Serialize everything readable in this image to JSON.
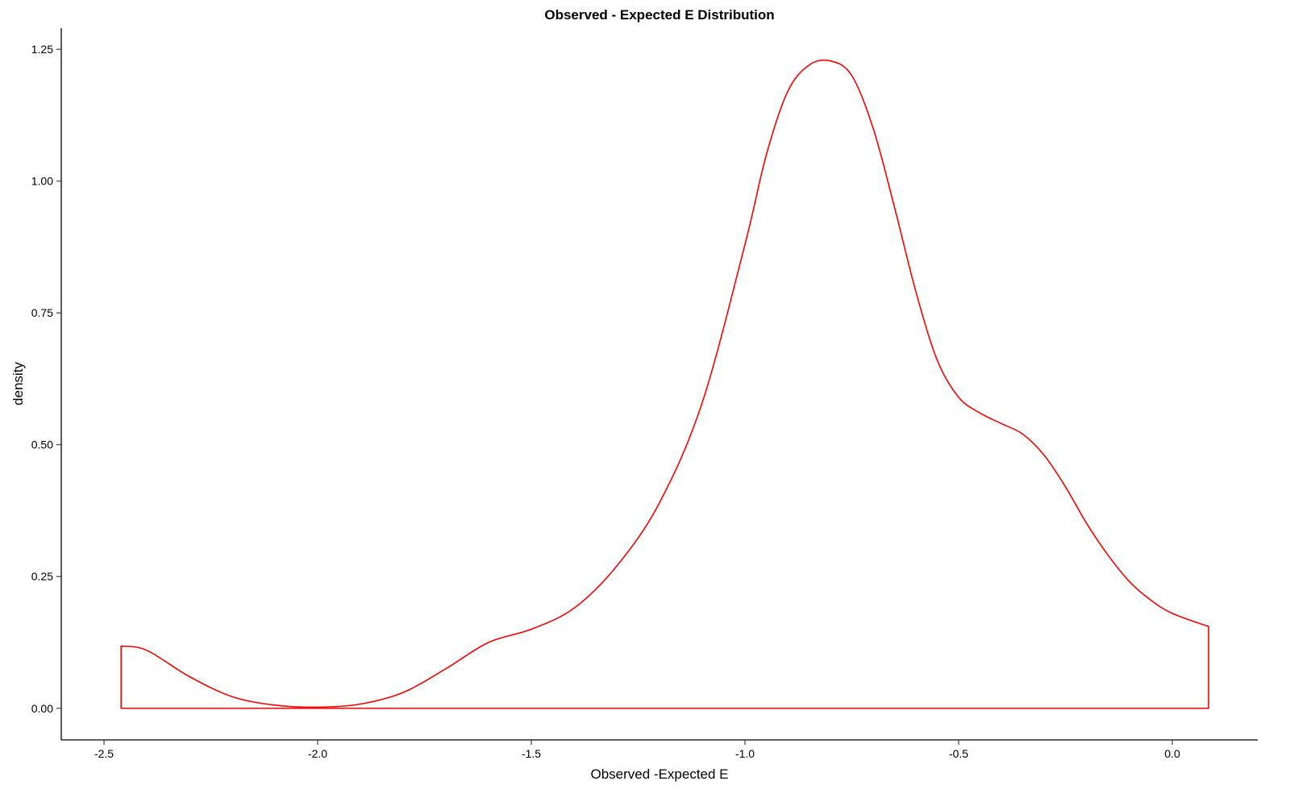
{
  "chart_data": {
    "type": "area",
    "title": "Observed - Expected E Distribution",
    "xlabel": "Observed -Expected E",
    "ylabel": "density",
    "xlim": [
      -2.6,
      0.2
    ],
    "ylim": [
      -0.06,
      1.29
    ],
    "x_ticks": [
      -2.5,
      -2.0,
      -1.5,
      -1.0,
      -0.5,
      0.0
    ],
    "x_tick_labels": [
      "-2.5",
      "-2.0",
      "-1.5",
      "-1.0",
      "-0.5",
      "0.0"
    ],
    "y_ticks": [
      0.0,
      0.25,
      0.5,
      0.75,
      1.0,
      1.25
    ],
    "y_tick_labels": [
      "0.00",
      "0.25",
      "0.50",
      "0.75",
      "1.00",
      "1.25"
    ],
    "grid": false,
    "line_color": "#ff0000",
    "fill": "none",
    "series": [
      {
        "x": [
          -2.46,
          -2.4,
          -2.3,
          -2.2,
          -2.1,
          -2.0,
          -1.9,
          -1.8,
          -1.7,
          -1.6,
          -1.5,
          -1.4,
          -1.3,
          -1.2,
          -1.1,
          -1.0,
          -0.95,
          -0.9,
          -0.85,
          -0.8,
          -0.75,
          -0.7,
          -0.65,
          -0.6,
          -0.55,
          -0.5,
          -0.45,
          -0.4,
          -0.35,
          -0.3,
          -0.25,
          -0.2,
          -0.15,
          -0.1,
          -0.05,
          0.0,
          0.085
        ],
        "y": [
          0.118,
          0.11,
          0.06,
          0.022,
          0.006,
          0.002,
          0.008,
          0.03,
          0.075,
          0.125,
          0.15,
          0.19,
          0.27,
          0.39,
          0.58,
          0.88,
          1.05,
          1.17,
          1.22,
          1.228,
          1.2,
          1.1,
          0.95,
          0.79,
          0.66,
          0.59,
          0.56,
          0.54,
          0.52,
          0.48,
          0.42,
          0.35,
          0.29,
          0.24,
          0.205,
          0.18,
          0.155
        ]
      }
    ]
  }
}
